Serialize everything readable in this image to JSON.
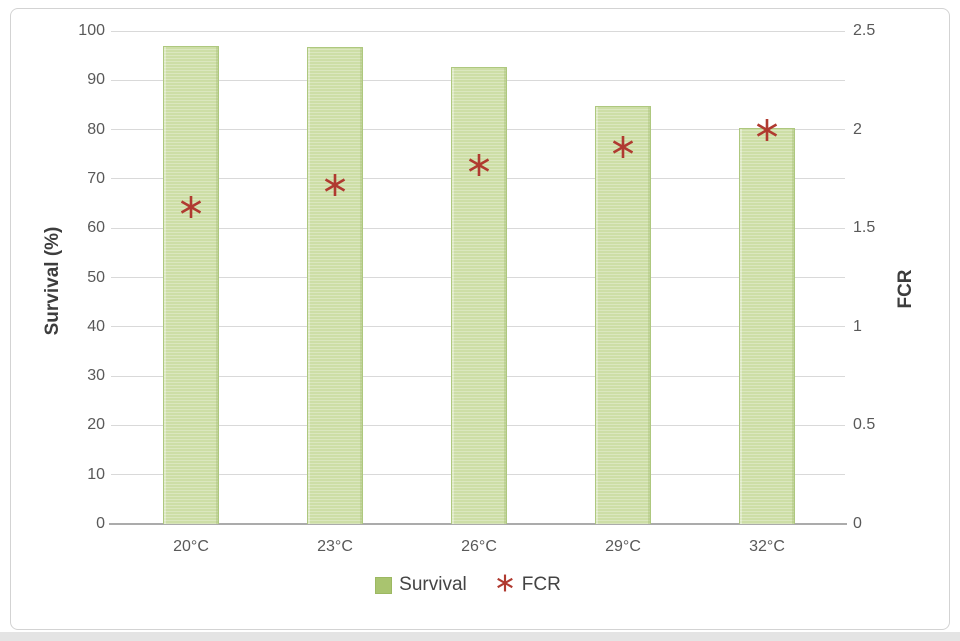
{
  "chart_data": {
    "type": "bar",
    "subtype": "combo-bar-with-scatter-overlay",
    "categories": [
      "20°C",
      "23°C",
      "26°C",
      "29°C",
      "32°C"
    ],
    "series": [
      {
        "name": "Survival",
        "type": "bar",
        "axis": "left",
        "values": [
          97,
          96.7,
          92.7,
          84.7,
          80.3
        ],
        "fill_color": "#c9db9f",
        "border_color": "#aec87f"
      },
      {
        "name": "FCR",
        "type": "scatter",
        "marker": "asterisk",
        "axis": "right",
        "values": [
          1.61,
          1.72,
          1.82,
          1.91,
          2.0
        ],
        "color": "#b03a30"
      }
    ],
    "left_axis": {
      "label": "Survival (%)",
      "min": 0,
      "max": 100,
      "step": 10,
      "ticks": [
        "0",
        "10",
        "20",
        "30",
        "40",
        "50",
        "60",
        "70",
        "80",
        "90",
        "100"
      ]
    },
    "right_axis": {
      "label": "FCR",
      "min": 0,
      "max": 2.5,
      "step": 0.5,
      "ticks": [
        "0",
        "0.5",
        "1",
        "1.5",
        "2",
        "2.5"
      ]
    },
    "legend": {
      "position": "bottom",
      "entries": [
        "Survival",
        "FCR"
      ]
    },
    "grid": true,
    "gridline_color": "#d9d9d9",
    "axis_line_color": "#ababab",
    "tick_text_color": "#595959",
    "title_text_color": "#3d3d3d"
  }
}
